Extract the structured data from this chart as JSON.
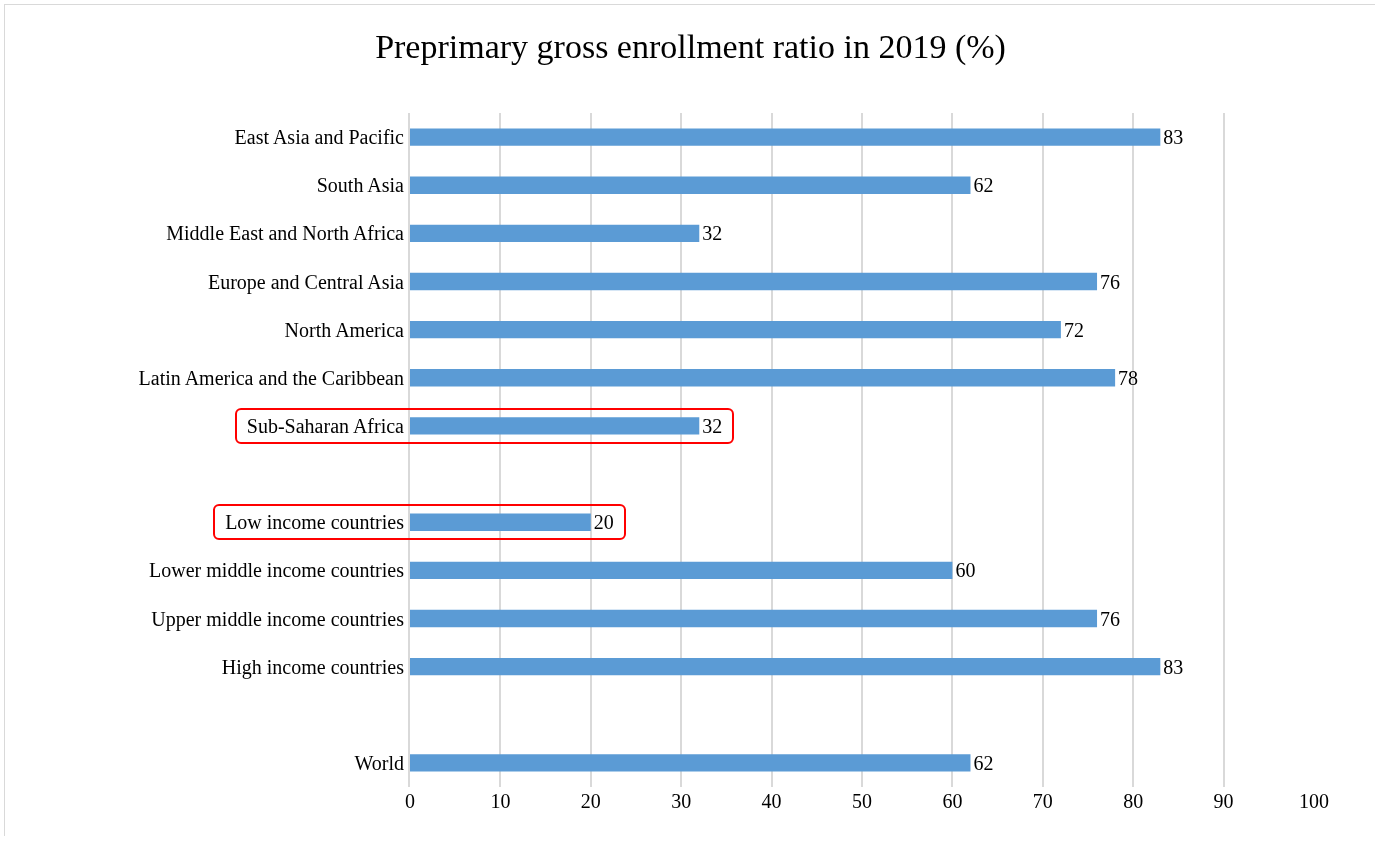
{
  "chart_data": {
    "type": "bar",
    "orientation": "horizontal",
    "title": "Preprimary gross enrollment ratio in 2019 (%)",
    "categories": [
      "East Asia and Pacific",
      "South Asia",
      "Middle East and North Africa",
      "Europe and Central Asia",
      "North America",
      "Latin America and the Caribbean",
      "Sub-Saharan Africa",
      null,
      "Low income countries",
      "Lower middle income countries",
      "Upper middle income countries",
      "High income countries",
      null,
      "World"
    ],
    "values": [
      83,
      62,
      32,
      76,
      72,
      78,
      32,
      null,
      20,
      60,
      76,
      83,
      null,
      62
    ],
    "color": "#5b9bd5",
    "data_labels": true,
    "xlim": [
      0,
      100
    ],
    "xticks": [
      0,
      10,
      20,
      30,
      40,
      50,
      60,
      70,
      80,
      90,
      100
    ],
    "grid": "x",
    "legend": false
  }
}
